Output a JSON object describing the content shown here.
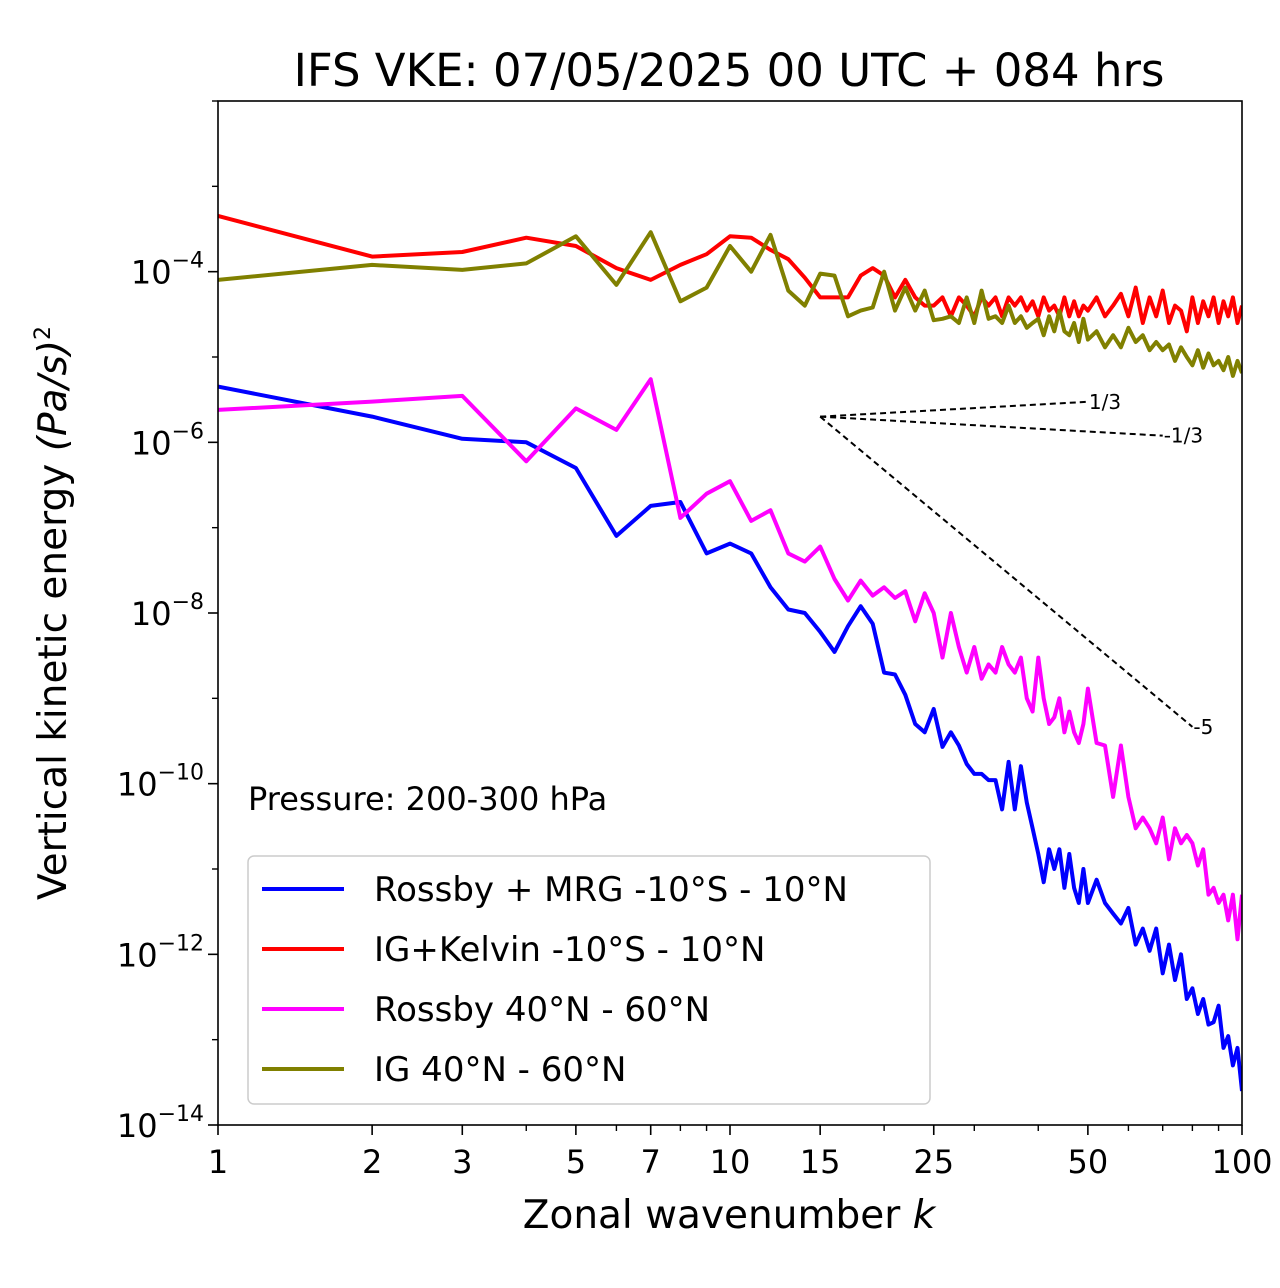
{
  "chart_data": {
    "type": "line",
    "title": "IFS VKE: 07/05/2025 00 UTC + 084 hrs",
    "xlabel": "Zonal wavenumber",
    "xlabel_var": "k",
    "ylabel": "Vertical kinetic energy",
    "ylabel_unit": "(Pa/s)",
    "ylabel_power": "2",
    "xscale": "log",
    "yscale": "log",
    "xlim": [
      1,
      100
    ],
    "ylim": [
      1e-14,
      0.01
    ],
    "xticks": [
      1,
      2,
      3,
      5,
      7,
      10,
      15,
      25,
      50,
      100
    ],
    "xtick_labels": [
      "1",
      "2",
      "3",
      "5",
      "7",
      "10",
      "15",
      "25",
      "50",
      "100"
    ],
    "yticks": [
      {
        "value": 1e-14,
        "base": "10",
        "exp": "−14"
      },
      {
        "value": 1e-12,
        "base": "10",
        "exp": "−12"
      },
      {
        "value": 1e-10,
        "base": "10",
        "exp": "−10"
      },
      {
        "value": 1e-08,
        "base": "10",
        "exp": "−8"
      },
      {
        "value": 1e-06,
        "base": "10",
        "exp": "−6"
      },
      {
        "value": 0.0001,
        "base": "10",
        "exp": "−4"
      }
    ],
    "annotation": "Pressure: 200-300 hPa",
    "legend_position": "lower-left",
    "grid": false,
    "series": [
      {
        "name": "Rossby + MRG -10°S - 10°N",
        "color": "#0000ff",
        "x": [
          1,
          2,
          3,
          4,
          5,
          6,
          7,
          8,
          9,
          10,
          11,
          12,
          13,
          14,
          15,
          16,
          17,
          18,
          19,
          20,
          21,
          22,
          23,
          24,
          25,
          26,
          27,
          28,
          29,
          30,
          31,
          32,
          33,
          34,
          35,
          36,
          37,
          38,
          39,
          40,
          41,
          42,
          43,
          44,
          45,
          46,
          47,
          48,
          49,
          50,
          52,
          54,
          56,
          58,
          60,
          62,
          64,
          66,
          68,
          70,
          72,
          74,
          76,
          78,
          80,
          82,
          84,
          86,
          88,
          90,
          92,
          94,
          96,
          98,
          100
        ],
        "y": [
          4.5e-06,
          2e-06,
          1.1e-06,
          1e-06,
          5e-07,
          8e-08,
          1.8e-07,
          2e-07,
          5e-08,
          6.5e-08,
          5e-08,
          2e-08,
          1.1e-08,
          1e-08,
          6e-09,
          3.5e-09,
          7e-09,
          1.2e-08,
          7.5e-09,
          2e-09,
          1.9e-09,
          1.1e-09,
          5e-10,
          4e-10,
          7.5e-10,
          2.7e-10,
          4e-10,
          2.8e-10,
          1.7e-10,
          1.3e-10,
          1.3e-10,
          1.1e-10,
          1.1e-10,
          5e-11,
          1.8e-10,
          5e-11,
          1.6e-10,
          6e-11,
          3e-11,
          1.5e-11,
          7e-12,
          1.7e-11,
          1e-11,
          1.7e-11,
          6e-12,
          1.5e-11,
          6e-12,
          4e-12,
          1e-11,
          4e-12,
          7.5e-12,
          4e-12,
          3e-12,
          2.3e-12,
          3.5e-12,
          1.3e-12,
          2e-12,
          1.1e-12,
          2e-12,
          6e-13,
          1.3e-12,
          5e-13,
          1e-12,
          3e-13,
          4e-13,
          2e-13,
          3e-13,
          1.5e-13,
          1.6e-13,
          2.5e-13,
          8e-14,
          1.1e-13,
          5e-14,
          8e-14,
          2.5e-14
        ]
      },
      {
        "name": "IG+Kelvin -10°S - 10°N",
        "color": "#ff0000",
        "x": [
          1,
          2,
          3,
          4,
          5,
          6,
          7,
          8,
          9,
          10,
          11,
          12,
          13,
          14,
          15,
          16,
          17,
          18,
          19,
          20,
          21,
          22,
          23,
          24,
          25,
          26,
          27,
          28,
          29,
          30,
          31,
          32,
          33,
          34,
          35,
          36,
          37,
          38,
          39,
          40,
          41,
          42,
          43,
          44,
          45,
          46,
          47,
          48,
          49,
          50,
          52,
          54,
          56,
          58,
          60,
          62,
          64,
          66,
          68,
          70,
          72,
          74,
          76,
          78,
          80,
          82,
          84,
          86,
          88,
          90,
          92,
          94,
          96,
          98,
          100
        ],
        "y": [
          0.00045,
          0.00015,
          0.00017,
          0.00025,
          0.0002,
          0.00011,
          8e-05,
          0.00012,
          0.00016,
          0.00026,
          0.00025,
          0.00018,
          0.00014,
          8.5e-05,
          5e-05,
          5e-05,
          5e-05,
          9e-05,
          0.00011,
          9e-05,
          5e-05,
          8e-05,
          5e-05,
          4e-05,
          4e-05,
          5e-05,
          3e-05,
          5e-05,
          4e-05,
          3e-05,
          5e-05,
          4e-05,
          5e-05,
          3e-05,
          5e-05,
          4e-05,
          5e-05,
          3.5e-05,
          4.5e-05,
          3e-05,
          5e-05,
          3.5e-05,
          4e-05,
          3e-05,
          5e-05,
          3e-05,
          4.5e-05,
          3e-05,
          4e-05,
          3.5e-05,
          5e-05,
          3e-05,
          4e-05,
          5.5e-05,
          3e-05,
          6.5e-05,
          2.5e-05,
          5e-05,
          3e-05,
          6e-05,
          2.5e-05,
          4e-05,
          3.5e-05,
          2e-05,
          5e-05,
          2.5e-05,
          4.5e-05,
          3e-05,
          5e-05,
          2.5e-05,
          4.5e-05,
          3e-05,
          5e-05,
          2.5e-05,
          4e-05
        ]
      },
      {
        "name": "Rossby 40°N - 60°N",
        "color": "#ff00ff",
        "x": [
          1,
          2,
          3,
          4,
          5,
          6,
          7,
          8,
          9,
          10,
          11,
          12,
          13,
          14,
          15,
          16,
          17,
          18,
          19,
          20,
          21,
          22,
          23,
          24,
          25,
          26,
          27,
          28,
          29,
          30,
          31,
          32,
          33,
          34,
          35,
          36,
          37,
          38,
          39,
          40,
          41,
          42,
          43,
          44,
          45,
          46,
          47,
          48,
          49,
          50,
          52,
          54,
          56,
          58,
          60,
          62,
          64,
          66,
          68,
          70,
          72,
          74,
          76,
          78,
          80,
          82,
          84,
          86,
          88,
          90,
          92,
          94,
          96,
          98,
          100
        ],
        "y": [
          2.4e-06,
          3e-06,
          3.5e-06,
          6e-07,
          2.5e-06,
          1.4e-06,
          5.5e-06,
          1.3e-07,
          2.5e-07,
          3.5e-07,
          1.2e-07,
          1.6e-07,
          5e-08,
          4e-08,
          6e-08,
          2.5e-08,
          1.4e-08,
          2.4e-08,
          1.6e-08,
          2e-08,
          1.5e-08,
          1.8e-08,
          8e-09,
          1.7e-08,
          1e-08,
          3e-09,
          1e-08,
          4e-09,
          2e-09,
          4e-09,
          1.7e-09,
          2.5e-09,
          2e-09,
          4e-09,
          2.5e-09,
          2e-09,
          3e-09,
          1e-09,
          7e-10,
          3e-09,
          1e-09,
          5e-10,
          6e-10,
          1e-09,
          4e-10,
          7e-10,
          4e-10,
          3e-10,
          5e-10,
          1.3e-09,
          3e-10,
          2.8e-10,
          7e-11,
          2.8e-10,
          7e-11,
          3e-11,
          4e-11,
          3e-11,
          2e-11,
          4e-11,
          1.3e-11,
          3e-11,
          2e-11,
          2.5e-11,
          2e-11,
          1.1e-11,
          1.7e-11,
          5e-12,
          6e-12,
          4e-12,
          5e-12,
          2.5e-12,
          5e-12,
          1.5e-12,
          5e-12
        ]
      },
      {
        "name": "IG 40°N - 60°N",
        "color": "#808000",
        "x": [
          1,
          2,
          3,
          4,
          5,
          6,
          7,
          8,
          9,
          10,
          11,
          12,
          13,
          14,
          15,
          16,
          17,
          18,
          19,
          20,
          21,
          22,
          23,
          24,
          25,
          26,
          27,
          28,
          29,
          30,
          31,
          32,
          33,
          34,
          35,
          36,
          37,
          38,
          39,
          40,
          41,
          42,
          43,
          44,
          45,
          46,
          47,
          48,
          49,
          50,
          52,
          54,
          56,
          58,
          60,
          62,
          64,
          66,
          68,
          70,
          72,
          74,
          76,
          78,
          80,
          82,
          84,
          86,
          88,
          90,
          92,
          94,
          96,
          98,
          100
        ],
        "y": [
          8e-05,
          0.00012,
          0.000105,
          0.000125,
          0.00026,
          7e-05,
          0.00029,
          4.5e-05,
          6.5e-05,
          0.0002,
          0.0001,
          0.00027,
          6e-05,
          4e-05,
          9.5e-05,
          9e-05,
          3e-05,
          3.5e-05,
          3.8e-05,
          0.0001,
          3.5e-05,
          6.5e-05,
          3.5e-05,
          6e-05,
          2.7e-05,
          2.8e-05,
          3e-05,
          2.5e-05,
          5e-05,
          2.5e-05,
          6e-05,
          2.8e-05,
          3e-05,
          2.5e-05,
          4e-05,
          2.5e-05,
          3e-05,
          2.2e-05,
          2.5e-05,
          2.8e-05,
          1.8e-05,
          3e-05,
          2e-05,
          3.5e-05,
          2e-05,
          1.8e-05,
          2.5e-05,
          1.5e-05,
          2.8e-05,
          1.6e-05,
          2e-05,
          1.3e-05,
          1.8e-05,
          1.3e-05,
          2.2e-05,
          1.5e-05,
          1.8e-05,
          1.2e-05,
          1.5e-05,
          1.2e-05,
          1.4e-05,
          9e-06,
          1.3e-05,
          1e-05,
          8e-06,
          1.2e-05,
          7.5e-06,
          1.1e-05,
          8e-06,
          9e-06,
          7e-06,
          1e-05,
          6e-06,
          9e-06,
          6.5e-06
        ]
      }
    ],
    "reference_slopes": [
      {
        "label": "1/3",
        "slope": 0.3333,
        "x0": 15,
        "y0": 2e-06,
        "x1": 50
      },
      {
        "label": "-1/3",
        "slope": -0.3333,
        "x0": 15,
        "y0": 2e-06,
        "x1": 70
      },
      {
        "label": "-5",
        "slope": -5,
        "x0": 15,
        "y0": 2e-06,
        "x1": 80
      }
    ]
  }
}
